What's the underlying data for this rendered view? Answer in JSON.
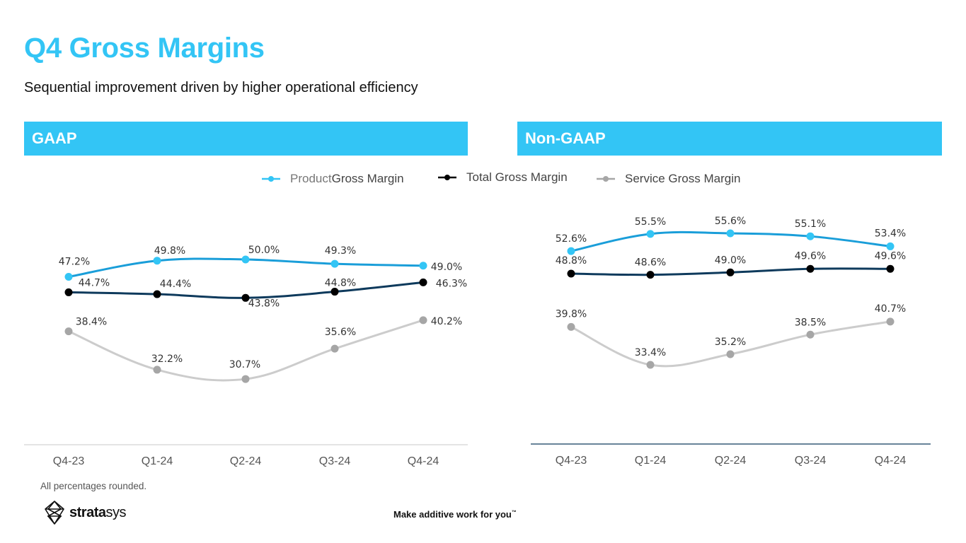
{
  "page": {
    "title": "Q4 Gross Margins",
    "subtitle": "Sequential improvement driven by higher operational efficiency",
    "footnote": "All percentages rounded.",
    "tagline": "Make additive work for you",
    "tagline_mark": "™",
    "logo": {
      "bold": "strata",
      "light": "sys",
      "icon": "stratasys-logo-icon"
    }
  },
  "colors": {
    "accent": "#33C5F5",
    "product": "#1A9ED9",
    "product_marker": "#33C5F5",
    "total": "#0E3A5C",
    "total_marker": "#000000",
    "service": "#CCCCCC",
    "service_marker": "#A6A6A6"
  },
  "legend": [
    {
      "key": "product",
      "label_light": "Product ",
      "label": "Gross Margin"
    },
    {
      "key": "total",
      "label_light": "",
      "label": "Total Gross Margin"
    },
    {
      "key": "service",
      "label_light": "",
      "label": "Service Gross Margin"
    }
  ],
  "chart_data": [
    {
      "type": "line",
      "title": "GAAP",
      "categories": [
        "Q4-23",
        "Q1-24",
        "Q2-24",
        "Q3-24",
        "Q4-24"
      ],
      "xlabel": "",
      "ylabel": "",
      "ylim": [
        25,
        56
      ],
      "grid": false,
      "legend": "top-center",
      "series": [
        {
          "key": "product",
          "name": "Product Gross Margin",
          "values": [
            47.2,
            49.8,
            50.0,
            49.3,
            49.0
          ],
          "labels": [
            "47.2%",
            "49.8%",
            "50.0%",
            "49.3%",
            "49.0%"
          ]
        },
        {
          "key": "total",
          "name": "Total Gross Margin",
          "values": [
            44.7,
            44.4,
            43.8,
            44.8,
            46.3
          ],
          "labels": [
            "44.7%",
            "44.4%",
            "43.8%",
            "44.8%",
            "46.3%"
          ]
        },
        {
          "key": "service",
          "name": "Service Gross Margin",
          "values": [
            38.4,
            32.2,
            30.7,
            35.6,
            40.2
          ],
          "labels": [
            "38.4%",
            "32.2%",
            "30.7%",
            "35.6%",
            "40.2%"
          ]
        }
      ]
    },
    {
      "type": "line",
      "title": "Non-GAAP",
      "categories": [
        "Q4-23",
        "Q1-24",
        "Q2-24",
        "Q3-24",
        "Q4-24"
      ],
      "xlabel": "",
      "ylabel": "",
      "ylim": [
        25,
        60
      ],
      "grid": false,
      "legend": "top-center",
      "series": [
        {
          "key": "product",
          "name": "Product Gross Margin",
          "values": [
            52.6,
            55.5,
            55.6,
            55.1,
            53.4
          ],
          "labels": [
            "52.6%",
            "55.5%",
            "55.6%",
            "55.1%",
            "53.4%"
          ]
        },
        {
          "key": "total",
          "name": "Total Gross Margin",
          "values": [
            48.8,
            48.6,
            49.0,
            49.6,
            49.6
          ],
          "labels": [
            "48.8%",
            "48.6%",
            "49.0%",
            "49.6%",
            "49.6%"
          ]
        },
        {
          "key": "service",
          "name": "Service Gross Margin",
          "values": [
            39.8,
            33.4,
            35.2,
            38.5,
            40.7
          ],
          "labels": [
            "39.8%",
            "33.4%",
            "35.2%",
            "38.5%",
            "40.7%"
          ]
        }
      ]
    }
  ]
}
